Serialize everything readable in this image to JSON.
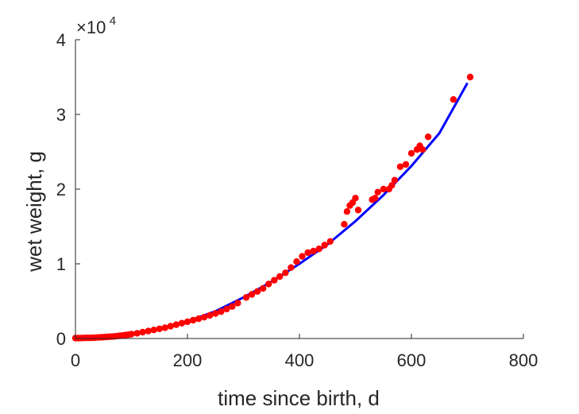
{
  "chart_data": {
    "type": "scatter",
    "xlabel": "time since birth, d",
    "ylabel": "wet weight, g",
    "xlim": [
      0,
      800
    ],
    "ylim": [
      0,
      40000
    ],
    "x_ticks": [
      0,
      200,
      400,
      600,
      800
    ],
    "y_ticks": [
      0,
      10000,
      20000,
      30000,
      40000
    ],
    "x_tick_labels": [
      "0",
      "200",
      "400",
      "600",
      "800"
    ],
    "y_tick_labels": [
      "0",
      "1",
      "2",
      "3",
      "4"
    ],
    "y_exponent": {
      "base": "×10",
      "power": "4"
    },
    "grid": false,
    "legend": "none",
    "colors": {
      "fit": "#0000ff",
      "data": "#ff0000",
      "axis": "#262626"
    },
    "series": [
      {
        "kind": "line",
        "x": [
          0,
          50,
          100,
          150,
          200,
          250,
          300,
          350,
          400,
          450,
          500,
          550,
          600,
          650,
          700
        ],
        "y": [
          50,
          200,
          650,
          1350,
          2300,
          3650,
          5500,
          7600,
          10000,
          12600,
          15700,
          19200,
          23100,
          27500,
          34200
        ]
      },
      {
        "kind": "scatter",
        "x": [
          0,
          5,
          10,
          15,
          20,
          25,
          30,
          35,
          40,
          45,
          50,
          55,
          60,
          65,
          70,
          75,
          80,
          85,
          90,
          95,
          100,
          110,
          120,
          130,
          140,
          150,
          160,
          170,
          180,
          190,
          200,
          210,
          220,
          230,
          240,
          250,
          260,
          270,
          280,
          290,
          305,
          315,
          325,
          335,
          345,
          355,
          365,
          375,
          385,
          395,
          405,
          415,
          425,
          435,
          445,
          455,
          480,
          485,
          490,
          495,
          500,
          505,
          530,
          535,
          540,
          550,
          560,
          565,
          570,
          580,
          590,
          600,
          610,
          615,
          620,
          630,
          675,
          705
        ],
        "y": [
          50,
          50,
          60,
          70,
          80,
          90,
          100,
          120,
          140,
          160,
          180,
          200,
          230,
          260,
          290,
          330,
          370,
          420,
          470,
          520,
          580,
          700,
          850,
          1000,
          1150,
          1300,
          1450,
          1650,
          1850,
          2050,
          2250,
          2450,
          2650,
          2850,
          3100,
          3350,
          3600,
          3950,
          4300,
          4750,
          5500,
          5900,
          6300,
          6700,
          7300,
          7800,
          8300,
          8800,
          9500,
          10300,
          11000,
          11500,
          11700,
          12000,
          12500,
          13000,
          15300,
          17000,
          17800,
          18200,
          18800,
          17200,
          18600,
          18800,
          19600,
          20000,
          20000,
          20500,
          21200,
          23000,
          23300,
          24800,
          25300,
          25800,
          25300,
          27000,
          32000,
          35000
        ]
      }
    ]
  }
}
